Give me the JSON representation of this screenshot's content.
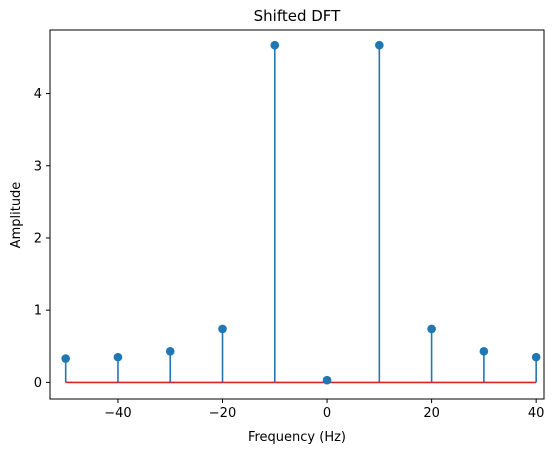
{
  "chart_data": {
    "type": "stem",
    "title": "Shifted DFT",
    "xlabel": "Frequency (Hz)",
    "ylabel": "Amplitude",
    "x": [
      -50,
      -40,
      -30,
      -20,
      -10,
      0,
      10,
      20,
      30,
      40
    ],
    "y": [
      0.33,
      0.35,
      0.43,
      0.74,
      4.67,
      0.03,
      4.67,
      0.74,
      0.43,
      0.35
    ],
    "baseline": 0,
    "xlim": [
      -53,
      41.5
    ],
    "ylim": [
      -0.23,
      4.88
    ],
    "xticks": [
      -40,
      -20,
      0,
      20,
      40
    ],
    "xtick_labels": [
      "−40",
      "−20",
      "0",
      "20",
      "40"
    ],
    "yticks": [
      0,
      1,
      2,
      3,
      4
    ],
    "ytick_labels": [
      "0",
      "1",
      "2",
      "3",
      "4"
    ],
    "grid": false,
    "colors": {
      "stem": "#1f77b4",
      "marker": "#1f77b4",
      "baseline": "#d62728"
    }
  }
}
